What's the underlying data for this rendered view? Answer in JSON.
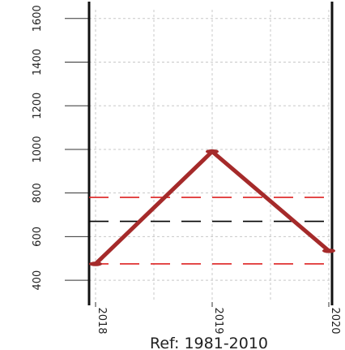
{
  "chart_data": {
    "type": "line",
    "title": "",
    "xlabel": "Ref: 1981-2010",
    "ylabel": "",
    "x": [
      "2018",
      "2019",
      "2020"
    ],
    "ylim": [
      300,
      1640
    ],
    "y_ticks": [
      400,
      600,
      800,
      1000,
      1200,
      1400,
      1600
    ],
    "y_tick_labels": [
      "400",
      "600",
      "800",
      "1000",
      "1200",
      "1400",
      "1600"
    ],
    "x_tick_labels": [
      "2018",
      "2019",
      "2020"
    ],
    "grid": true,
    "series": [
      {
        "values": [
          475,
          990,
          535
        ],
        "color": "#a52a2a"
      }
    ],
    "reference_lines": [
      {
        "value": 780,
        "color": "#dd2222",
        "style": "dashed"
      },
      {
        "value": 670,
        "color": "#000000",
        "style": "dashed"
      },
      {
        "value": 475,
        "color": "#dd2222",
        "style": "dashed"
      }
    ]
  }
}
